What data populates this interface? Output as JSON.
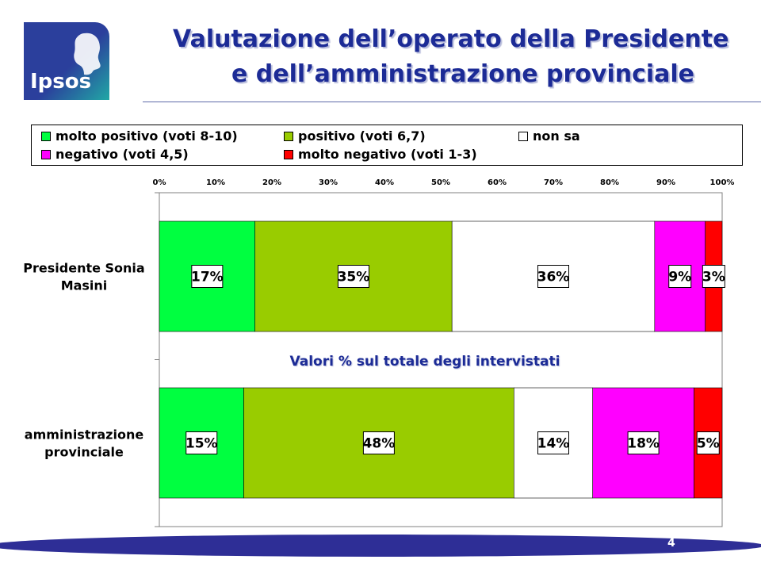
{
  "slide": {
    "title_line1": "Valutazione dell’operato della Presidente",
    "title_line2": "e dell’amministrazione provinciale",
    "page_number": "4"
  },
  "logo": {
    "text": "Ipsos",
    "colors": [
      "#2b3f9c",
      "#21a8a5"
    ]
  },
  "legend": [
    {
      "label": "molto positivo (voti 8-10)",
      "color": "#00ff40"
    },
    {
      "label": "positivo (voti 6,7)",
      "color": "#99cc00"
    },
    {
      "label": "non sa",
      "color": "#ffffff"
    },
    {
      "label": "negativo (voti 4,5)",
      "color": "#ff00ff"
    },
    {
      "label": "molto negativo (voti 1-3)",
      "color": "#ff0000"
    }
  ],
  "chart_data": {
    "type": "bar",
    "orientation": "horizontal",
    "stacked": true,
    "categories": [
      "Presidente Sonia Masini",
      "amministrazione provinciale"
    ],
    "series": [
      {
        "name": "molto positivo (voti 8-10)",
        "values": [
          17,
          15
        ],
        "color": "#00ff40"
      },
      {
        "name": "positivo (voti 6,7)",
        "values": [
          35,
          48
        ],
        "color": "#99cc00"
      },
      {
        "name": "non sa",
        "values": [
          36,
          14
        ],
        "color": "#ffffff"
      },
      {
        "name": "negativo (voti 4,5)",
        "values": [
          9,
          18
        ],
        "color": "#ff00ff"
      },
      {
        "name": "molto negativo (voti 1-3)",
        "values": [
          3,
          5
        ],
        "color": "#ff0000"
      }
    ],
    "xlim": [
      0,
      100
    ],
    "xticks": [
      "0%",
      "10%",
      "20%",
      "30%",
      "40%",
      "50%",
      "60%",
      "70%",
      "80%",
      "90%",
      "100%"
    ],
    "value_labels": [
      [
        "17%",
        "35%",
        "36%",
        "9%",
        "3%"
      ],
      [
        "15%",
        "48%",
        "14%",
        "18%",
        "5%"
      ]
    ],
    "annotation": "Valori % sul totale degli intervistati",
    "legend_position": "top",
    "grid": false
  }
}
